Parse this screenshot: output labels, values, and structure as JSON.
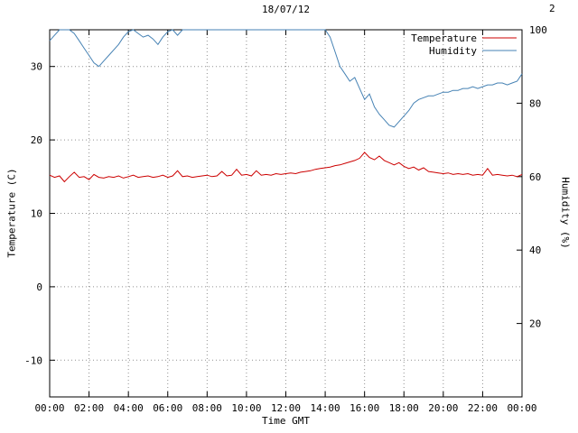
{
  "page": {
    "corner_label": "2"
  },
  "colors": {
    "temperature": "#cc0000",
    "humidity": "#4682b4",
    "grid": "#909090",
    "axis": "#000000",
    "background": "#ffffff"
  },
  "chart_data": {
    "type": "line",
    "title": "18/07/12",
    "xlabel": "Time GMT",
    "ylabel_left": "Temperature (C)",
    "ylabel_right": "Humidity (%)",
    "grid": true,
    "x_start_hour": 0,
    "x_end_hour": 24,
    "x_interval_hours": 0.25,
    "x_tick_step_hours": 2,
    "x_tick_labels": [
      "00:00",
      "02:00",
      "04:00",
      "06:00",
      "08:00",
      "10:00",
      "12:00",
      "14:00",
      "16:00",
      "18:00",
      "20:00",
      "22:00",
      "00:00"
    ],
    "left_axis": {
      "min": -15,
      "max": 35,
      "ticks": [
        -10,
        0,
        10,
        20,
        30
      ]
    },
    "right_axis": {
      "min": 0,
      "max": 100,
      "ticks": [
        20,
        40,
        60,
        80,
        100
      ]
    },
    "legend": {
      "position": "top-right",
      "entries": [
        {
          "label": "Temperature",
          "color": "#cc0000"
        },
        {
          "label": "Humidity",
          "color": "#4682b4"
        }
      ]
    },
    "series": [
      {
        "name": "Temperature",
        "axis": "left",
        "color": "#cc0000",
        "values": [
          15.2,
          14.9,
          15.1,
          14.3,
          15.0,
          15.6,
          14.9,
          15.0,
          14.6,
          15.3,
          14.9,
          14.8,
          15.0,
          14.9,
          15.1,
          14.8,
          15.0,
          15.2,
          14.9,
          15.0,
          15.1,
          14.9,
          15.0,
          15.2,
          14.9,
          15.1,
          15.8,
          15.0,
          15.1,
          14.9,
          15.0,
          15.1,
          15.2,
          15.0,
          15.1,
          15.7,
          15.1,
          15.2,
          16.0,
          15.2,
          15.3,
          15.1,
          15.8,
          15.2,
          15.3,
          15.2,
          15.4,
          15.3,
          15.4,
          15.5,
          15.4,
          15.6,
          15.7,
          15.8,
          16.0,
          16.1,
          16.2,
          16.3,
          16.5,
          16.6,
          16.8,
          17.0,
          17.2,
          17.5,
          18.3,
          17.6,
          17.3,
          17.8,
          17.2,
          16.9,
          16.6,
          16.9,
          16.4,
          16.1,
          16.3,
          15.9,
          16.2,
          15.7,
          15.6,
          15.5,
          15.4,
          15.5,
          15.3,
          15.4,
          15.3,
          15.4,
          15.2,
          15.3,
          15.2,
          16.1,
          15.2,
          15.3,
          15.2,
          15.1,
          15.2,
          15.0,
          15.3
        ]
      },
      {
        "name": "Humidity",
        "axis": "right",
        "color": "#4682b4",
        "values": [
          97,
          98.5,
          100,
          100,
          100,
          99,
          97,
          95,
          93,
          91,
          90,
          91.5,
          93,
          94.5,
          96,
          98,
          99.5,
          100,
          99,
          98,
          98.5,
          97.5,
          96,
          98,
          99.5,
          100,
          98.5,
          100,
          100,
          100,
          100,
          100,
          100,
          100,
          100,
          100,
          100,
          100,
          100,
          100,
          100,
          100,
          100,
          100,
          100,
          100,
          100,
          100,
          100,
          100,
          100,
          100,
          100,
          100,
          100,
          100,
          100,
          98,
          94,
          90,
          88,
          86,
          87,
          84,
          81,
          82.5,
          79,
          77,
          75.5,
          74,
          73.5,
          75,
          76.5,
          78,
          80,
          81,
          81.5,
          82,
          82,
          82.5,
          83,
          83,
          83.5,
          83.5,
          84,
          84,
          84.5,
          84,
          84.5,
          85,
          85,
          85.5,
          85.5,
          85,
          85.5,
          86,
          88
        ]
      }
    ]
  }
}
